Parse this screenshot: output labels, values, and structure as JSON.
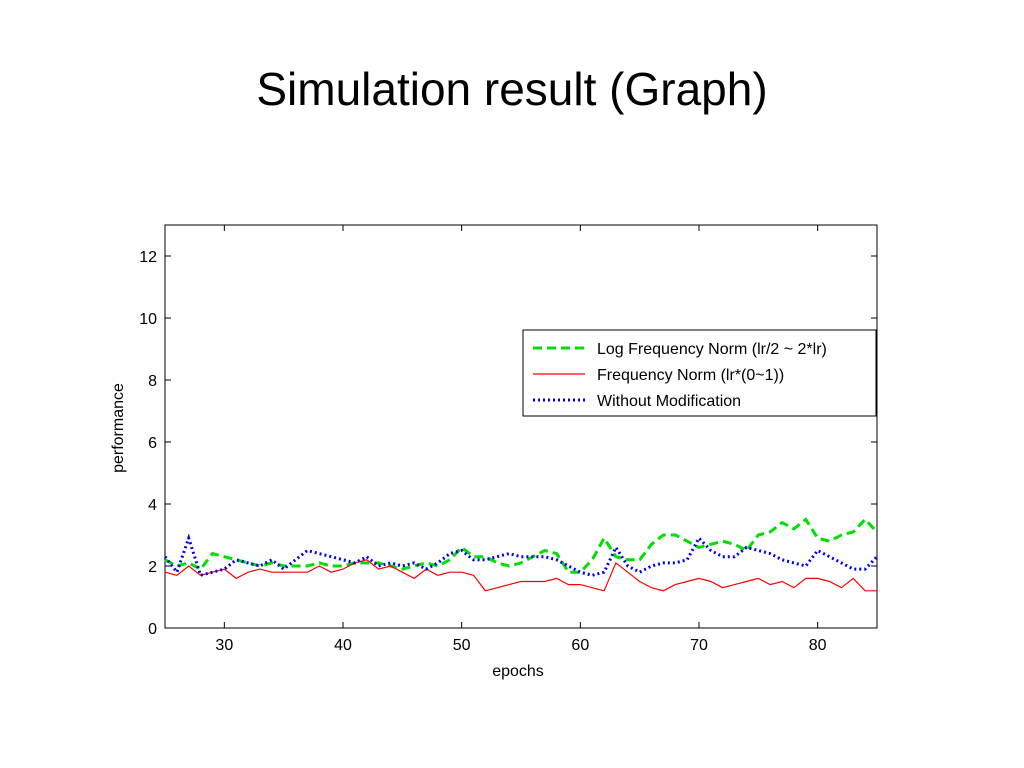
{
  "slide": {
    "title": "Simulation result (Graph)"
  },
  "chart_data": {
    "type": "line",
    "title": "",
    "xlabel": "epochs",
    "ylabel": "performance",
    "xlim": [
      25,
      85
    ],
    "ylim": [
      0,
      13
    ],
    "xticks": [
      30,
      40,
      50,
      60,
      70,
      80
    ],
    "yticks": [
      0,
      2,
      4,
      6,
      8,
      10,
      12
    ],
    "grid": false,
    "legend_position": "upper-right",
    "x": [
      25,
      26,
      27,
      28,
      29,
      30,
      31,
      32,
      33,
      34,
      35,
      36,
      37,
      38,
      39,
      40,
      41,
      42,
      43,
      44,
      45,
      46,
      47,
      48,
      49,
      50,
      51,
      52,
      53,
      54,
      55,
      56,
      57,
      58,
      59,
      60,
      61,
      62,
      63,
      64,
      65,
      66,
      67,
      68,
      69,
      70,
      71,
      72,
      73,
      74,
      75,
      76,
      77,
      78,
      79,
      80,
      81,
      82,
      83,
      84,
      85
    ],
    "series": [
      {
        "name": "Log Frequency Norm (lr/2 ~ 2*lr)",
        "color": "#00dd00",
        "style": "dashed",
        "values": [
          2.2,
          2.0,
          2.1,
          1.9,
          2.4,
          2.3,
          2.2,
          2.1,
          2.0,
          2.1,
          2.0,
          2.0,
          2.0,
          2.1,
          2.0,
          2.0,
          2.1,
          2.1,
          2.1,
          2.0,
          1.9,
          2.0,
          2.1,
          2.0,
          2.2,
          2.6,
          2.3,
          2.3,
          2.1,
          2.0,
          2.1,
          2.3,
          2.5,
          2.4,
          1.8,
          1.8,
          2.2,
          2.9,
          2.3,
          2.2,
          2.2,
          2.7,
          3.0,
          3.0,
          2.8,
          2.6,
          2.7,
          2.8,
          2.7,
          2.5,
          3.0,
          3.1,
          3.4,
          3.2,
          3.5,
          2.9,
          2.8,
          3.0,
          3.1,
          3.5,
          3.1
        ]
      },
      {
        "name": "Frequency Norm (lr*(0~1))",
        "color": "#ff0000",
        "style": "solid",
        "values": [
          1.8,
          1.7,
          2.0,
          1.7,
          1.8,
          1.9,
          1.6,
          1.8,
          1.9,
          1.8,
          1.8,
          1.8,
          1.8,
          2.0,
          1.8,
          1.9,
          2.1,
          2.2,
          1.9,
          2.0,
          1.8,
          1.6,
          1.9,
          1.7,
          1.8,
          1.8,
          1.7,
          1.2,
          1.3,
          1.4,
          1.5,
          1.5,
          1.5,
          1.6,
          1.4,
          1.4,
          1.3,
          1.2,
          2.1,
          1.8,
          1.5,
          1.3,
          1.2,
          1.4,
          1.5,
          1.6,
          1.5,
          1.3,
          1.4,
          1.5,
          1.6,
          1.4,
          1.5,
          1.3,
          1.6,
          1.6,
          1.5,
          1.3,
          1.6,
          1.2,
          1.2
        ]
      },
      {
        "name": "Without Modification",
        "color": "#0000ee",
        "style": "dotted",
        "values": [
          2.3,
          1.8,
          2.9,
          1.7,
          1.8,
          1.9,
          2.2,
          2.1,
          2.0,
          2.2,
          1.9,
          2.2,
          2.5,
          2.4,
          2.3,
          2.2,
          2.1,
          2.3,
          2.0,
          2.1,
          2.0,
          2.1,
          1.9,
          2.1,
          2.4,
          2.5,
          2.2,
          2.2,
          2.3,
          2.4,
          2.3,
          2.3,
          2.3,
          2.2,
          2.0,
          1.8,
          1.7,
          1.8,
          2.6,
          2.0,
          1.8,
          2.0,
          2.1,
          2.1,
          2.2,
          2.9,
          2.5,
          2.3,
          2.3,
          2.6,
          2.5,
          2.4,
          2.2,
          2.1,
          2.0,
          2.5,
          2.3,
          2.1,
          1.9,
          1.9,
          2.3
        ]
      }
    ]
  }
}
